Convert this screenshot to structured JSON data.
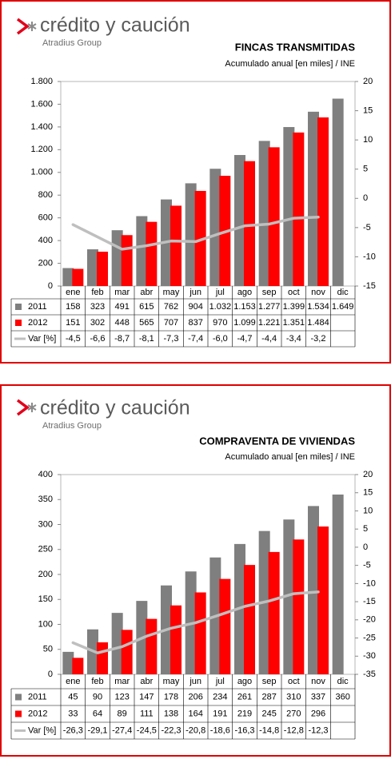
{
  "logos": [
    {
      "name": "crédito y caución",
      "group": "Atradius Group"
    },
    {
      "name": "crédito y caución",
      "group": "Atradius Group"
    }
  ],
  "chart_data": [
    {
      "type": "bar",
      "title": "FINCAS TRANSMITIDAS",
      "subtitle": "Acumulado anual [en miles] / INE",
      "categories": [
        "ene",
        "feb",
        "mar",
        "abr",
        "may",
        "jun",
        "jul",
        "ago",
        "sep",
        "oct",
        "nov",
        "dic"
      ],
      "series": [
        {
          "name": "2011",
          "color": "#7f7f7f",
          "values": [
            158,
            323,
            491,
            615,
            762,
            904,
            1032,
            1153,
            1277,
            1399,
            1534,
            1649
          ],
          "value_labels": [
            "158",
            "323",
            "491",
            "615",
            "762",
            "904",
            "1.032",
            "1.153",
            "1.277",
            "1.399",
            "1.534",
            "1.649"
          ]
        },
        {
          "name": "2012",
          "color": "#ff0000",
          "values": [
            151,
            302,
            448,
            565,
            707,
            837,
            970,
            1099,
            1221,
            1351,
            1484,
            null
          ],
          "value_labels": [
            "151",
            "302",
            "448",
            "565",
            "707",
            "837",
            "970",
            "1.099",
            "1.221",
            "1.351",
            "1.484",
            null
          ]
        },
        {
          "name": "Var [%]",
          "color": "#bfbfbf",
          "axis": "y2",
          "type": "line",
          "values": [
            -4.5,
            -6.6,
            -8.7,
            -8.1,
            -7.3,
            -7.4,
            -6.0,
            -4.7,
            -4.4,
            -3.4,
            -3.2,
            null
          ],
          "value_labels": [
            "-4,5",
            "-6,6",
            "-8,7",
            "-8,1",
            "-7,3",
            "-7,4",
            "-6,0",
            "-4,7",
            "-4,4",
            "-3,4",
            "-3,2",
            null
          ]
        }
      ],
      "ylim": [
        0,
        1800
      ],
      "yticks": [
        0,
        200,
        400,
        600,
        800,
        {
          "value": 1000,
          "label": "1.000"
        },
        {
          "value": 1200,
          "label": "1.200"
        },
        {
          "value": 1400,
          "label": "1.400"
        },
        {
          "value": 1600,
          "label": "1.600"
        },
        {
          "value": 1800,
          "label": "1.800"
        }
      ],
      "y2lim": [
        -15,
        20
      ],
      "y2ticks": [
        -15,
        -10,
        -5,
        0,
        5,
        10,
        15,
        20
      ]
    },
    {
      "type": "bar",
      "title": "COMPRAVENTA DE VIVIENDAS",
      "subtitle": "Acumulado anual [en miles] / INE",
      "categories": [
        "ene",
        "feb",
        "mar",
        "abr",
        "may",
        "jun",
        "jul",
        "ago",
        "sep",
        "oct",
        "nov",
        "dic"
      ],
      "series": [
        {
          "name": "2011",
          "color": "#7f7f7f",
          "values": [
            45,
            90,
            123,
            147,
            178,
            206,
            234,
            261,
            287,
            310,
            337,
            360
          ]
        },
        {
          "name": "2012",
          "color": "#ff0000",
          "values": [
            33,
            64,
            89,
            111,
            138,
            164,
            191,
            219,
            245,
            270,
            296,
            null
          ]
        },
        {
          "name": "Var [%]",
          "color": "#bfbfbf",
          "axis": "y2",
          "type": "line",
          "values": [
            -26.3,
            -29.1,
            -27.4,
            -24.5,
            -22.3,
            -20.8,
            -18.6,
            -16.3,
            -14.8,
            -12.8,
            -12.3,
            null
          ],
          "value_labels": [
            "-26,3",
            "-29,1",
            "-27,4",
            "-24,5",
            "-22,3",
            "-20,8",
            "-18,6",
            "-16,3",
            "-14,8",
            "-12,8",
            "-12,3",
            null
          ]
        }
      ],
      "ylim": [
        0,
        400
      ],
      "yticks": [
        0,
        50,
        100,
        150,
        200,
        250,
        300,
        350,
        400
      ],
      "y2lim": [
        -35,
        20
      ],
      "y2ticks": [
        -35,
        -30,
        -25,
        -20,
        -15,
        -10,
        -5,
        0,
        5,
        10,
        15,
        20
      ]
    }
  ]
}
